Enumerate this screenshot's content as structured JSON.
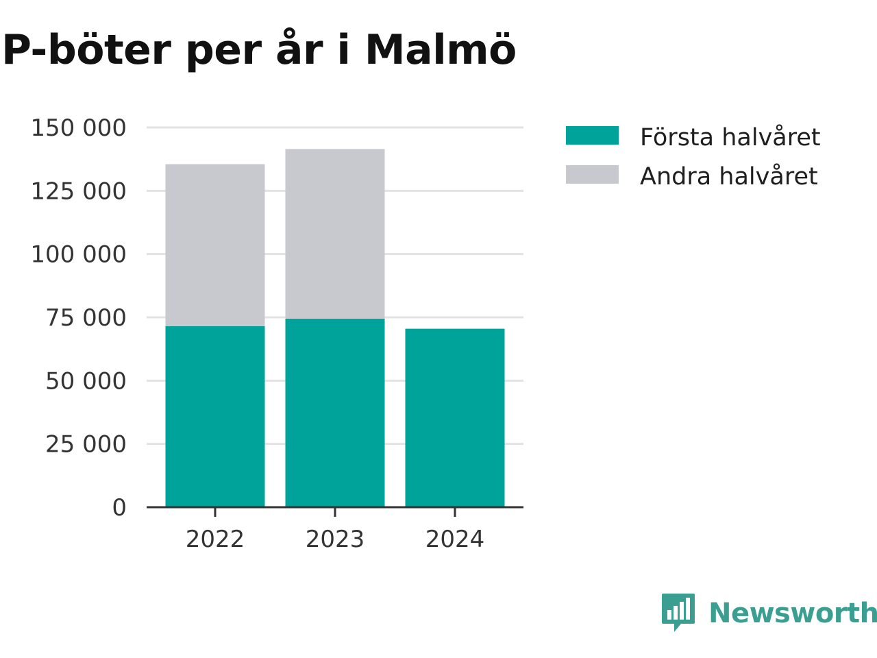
{
  "title": "P-böter per år i Malmö",
  "brand": {
    "name": "Newsworthy",
    "logo_icon": "bar-chart-speech-bubble-icon",
    "color": "#3a9e91"
  },
  "colors": {
    "first_half": "#00a39a",
    "second_half": "#c8c8cf",
    "grid": "#e3e3e3",
    "axis": "#333333"
  },
  "chart_data": {
    "type": "bar",
    "stacked": true,
    "categories": [
      "2022",
      "2023",
      "2024"
    ],
    "series": [
      {
        "name": "Första halvåret",
        "values": [
          71500,
          74500,
          70500
        ]
      },
      {
        "name": "Andra halvåret",
        "values": [
          64000,
          67000,
          0
        ]
      }
    ],
    "y_ticks": [
      "0",
      "25 000",
      "50 000",
      "75 000",
      "100 000",
      "125 000",
      "150 000"
    ],
    "ylim": [
      0,
      150000
    ],
    "grid": true,
    "legend_position": "top-right",
    "title": "P-böter per år i Malmö"
  }
}
